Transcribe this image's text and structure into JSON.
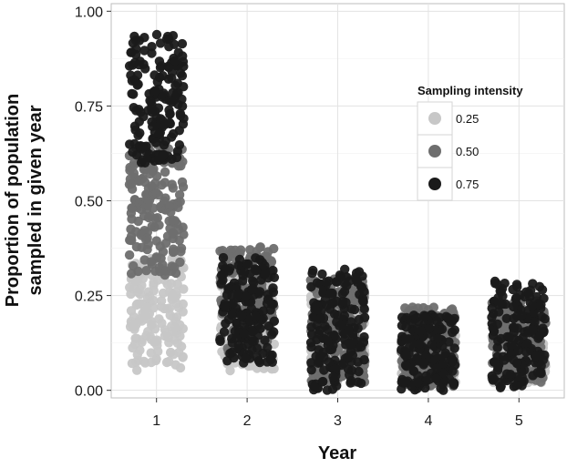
{
  "chart_data": {
    "type": "scatter",
    "xlabel": "Year",
    "ylabel_lines": [
      "Proportion of population",
      "sampled in given year"
    ],
    "categories": [
      "1",
      "2",
      "3",
      "4",
      "5"
    ],
    "x_ticks": [
      1,
      2,
      3,
      4,
      5
    ],
    "y_ticks": [
      "0.00",
      "0.25",
      "0.50",
      "0.75",
      "1.00"
    ],
    "y_tick_values": [
      0,
      0.25,
      0.5,
      0.75,
      1.0
    ],
    "xlim": [
      0.5,
      5.5
    ],
    "ylim": [
      -0.02,
      1.02
    ],
    "grid": true,
    "jitter_width": 0.3,
    "legend": {
      "title": "Sampling intensity",
      "placement": "top-right",
      "entries": [
        {
          "label": "0.25",
          "color": "#c7c7c7"
        },
        {
          "label": "0.50",
          "color": "#6e6e6e"
        },
        {
          "label": "0.75",
          "color": "#1a1a1a"
        }
      ]
    },
    "series": [
      {
        "name": "0.25",
        "color": "#c7c7c7",
        "ranges": [
          [
            0.05,
            0.35
          ],
          [
            0.05,
            0.3
          ],
          [
            0.02,
            0.25
          ],
          [
            0.02,
            0.2
          ],
          [
            0.02,
            0.2
          ]
        ],
        "n_per_year": 170
      },
      {
        "name": "0.50",
        "color": "#6e6e6e",
        "ranges": [
          [
            0.3,
            0.65
          ],
          [
            0.08,
            0.38
          ],
          [
            0.02,
            0.3
          ],
          [
            0.01,
            0.22
          ],
          [
            0.02,
            0.24
          ]
        ],
        "n_per_year": 170
      },
      {
        "name": "0.75",
        "color": "#1a1a1a",
        "ranges": [
          [
            0.6,
            0.94
          ],
          [
            0.07,
            0.35
          ],
          [
            0.0,
            0.32
          ],
          [
            0.0,
            0.2
          ],
          [
            0.0,
            0.29
          ]
        ],
        "n_per_year": 170
      }
    ]
  }
}
